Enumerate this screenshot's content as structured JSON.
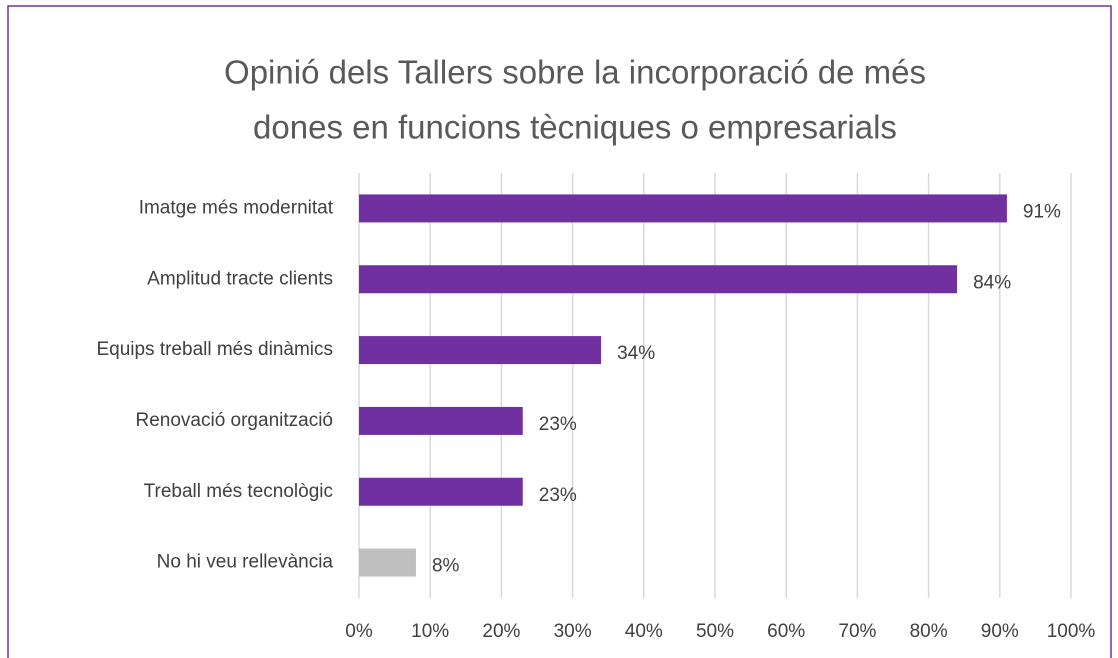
{
  "chart_data": {
    "type": "bar",
    "orientation": "horizontal",
    "title": [
      "Opinió dels Tallers sobre la incorporació de més",
      "dones en funcions tècniques o empresarials"
    ],
    "categories": [
      "Imatge més modernitat",
      "Amplitud tracte clients",
      "Equips treball més dinàmics",
      "Renovació organització",
      "Treball més tecnològic",
      "No hi veu rellevància"
    ],
    "values": [
      91,
      84,
      34,
      23,
      23,
      8
    ],
    "value_labels": [
      "91%",
      "84%",
      "34%",
      "23%",
      "23%",
      "8%"
    ],
    "colors": [
      "#7030a0",
      "#7030a0",
      "#7030a0",
      "#7030a0",
      "#7030a0",
      "#bfbfbf"
    ],
    "xlim": [
      0,
      100
    ],
    "xticks": [
      {
        "value": 0,
        "label": "0%"
      },
      {
        "value": 10,
        "label": "10%"
      },
      {
        "value": 20,
        "label": "20%"
      },
      {
        "value": 30,
        "label": "30%"
      },
      {
        "value": 40,
        "label": "40%"
      },
      {
        "value": 50,
        "label": "50%"
      },
      {
        "value": 60,
        "label": "60%"
      },
      {
        "value": 70,
        "label": "70%"
      },
      {
        "value": 80,
        "label": "80%"
      },
      {
        "value": 90,
        "label": "90%"
      },
      {
        "value": 100,
        "label": "100%"
      }
    ],
    "grid": true
  }
}
